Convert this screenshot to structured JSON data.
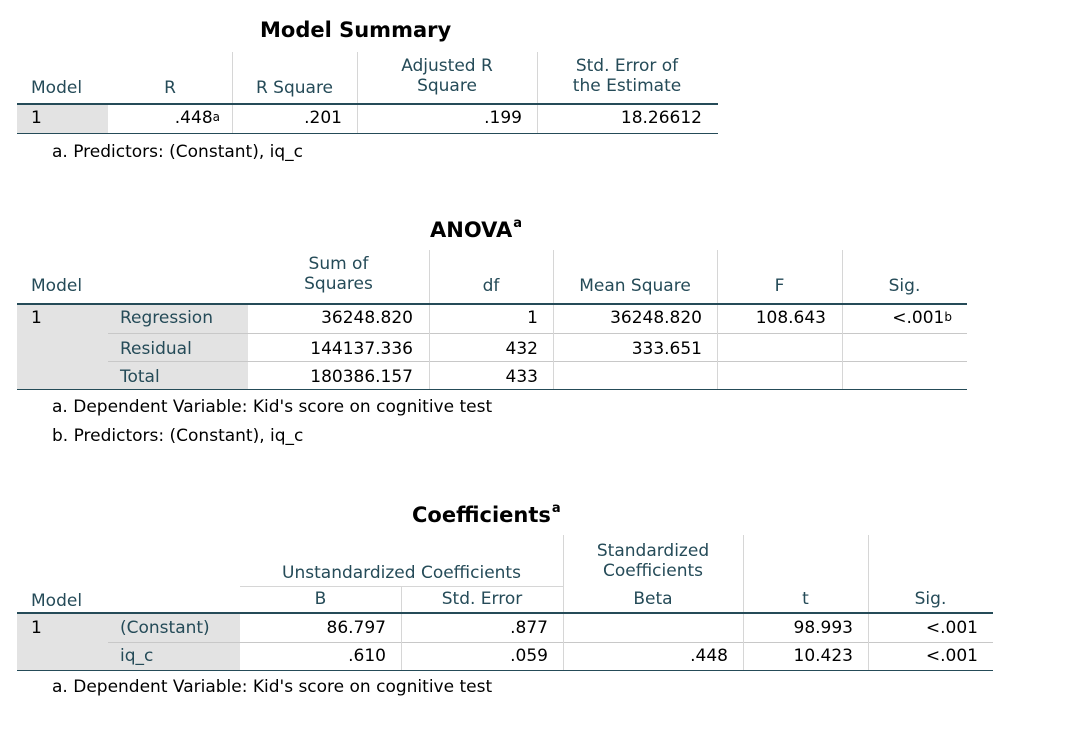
{
  "model_summary": {
    "title": "Model Summary",
    "headers": {
      "model": "Model",
      "r": "R",
      "r_square": "R Square",
      "adj_r_square": "Adjusted R Square",
      "se_estimate": "Std. Error of the Estimate"
    },
    "adj_line1": "Adjusted R",
    "adj_line2": "Square",
    "se_line1": "Std. Error of",
    "se_line2": "the Estimate",
    "row": {
      "model": "1",
      "r": ".448",
      "r_sup": "a",
      "r_square": ".201",
      "adj_r_square": ".199",
      "se_estimate": "18.26612"
    },
    "notes": [
      "a. Predictors: (Constant), iq_c"
    ]
  },
  "anova": {
    "title": "ANOVA",
    "title_sup": "a",
    "headers": {
      "model": "Model",
      "ss_line1": "Sum of",
      "ss_line2": "Squares",
      "df": "df",
      "ms": "Mean Square",
      "f": "F",
      "sig": "Sig."
    },
    "model_num": "1",
    "rows": [
      {
        "label": "Regression",
        "ss": "36248.820",
        "df": "1",
        "ms": "36248.820",
        "f": "108.643",
        "sig": "<.001",
        "sig_sup": "b"
      },
      {
        "label": "Residual",
        "ss": "144137.336",
        "df": "432",
        "ms": "333.651",
        "f": "",
        "sig": ""
      },
      {
        "label": "Total",
        "ss": "180386.157",
        "df": "433",
        "ms": "",
        "f": "",
        "sig": ""
      }
    ],
    "notes": [
      "a. Dependent Variable: Kid's score on cognitive test",
      "b. Predictors: (Constant), iq_c"
    ]
  },
  "coefficients": {
    "title": "Coefficients",
    "title_sup": "a",
    "headers": {
      "unstd": "Unstandardized Coefficients",
      "std_line1": "Standardized",
      "std_line2": "Coefficients",
      "model": "Model",
      "b": "B",
      "se": "Std. Error",
      "beta": "Beta",
      "t": "t",
      "sig": "Sig."
    },
    "model_num": "1",
    "rows": [
      {
        "label": "(Constant)",
        "b": "86.797",
        "se": ".877",
        "beta": "",
        "t": "98.993",
        "sig": "<.001"
      },
      {
        "label": "iq_c",
        "b": ".610",
        "se": ".059",
        "beta": ".448",
        "t": "10.423",
        "sig": "<.001"
      }
    ],
    "notes": [
      "a. Dependent Variable: Kid's score on cognitive test"
    ]
  }
}
